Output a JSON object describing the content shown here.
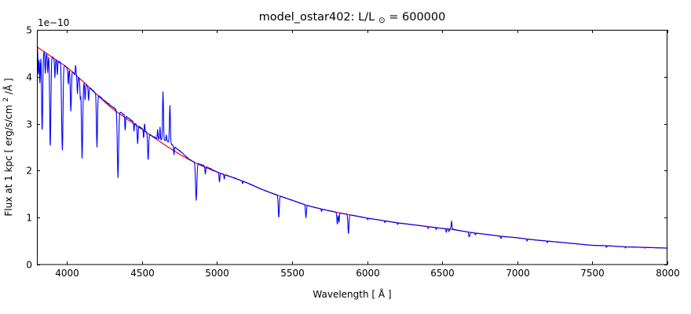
{
  "figure": {
    "title_prefix": "model_ostar402: L/L",
    "title_sub": "⊙",
    "title_suffix": " = 600000"
  },
  "chart_data": {
    "type": "line",
    "title": "model_ostar402: L/L⊙ = 600000",
    "xlabel": "Wavelength [ Å ]",
    "ylabel": "Flux at 1 kpc [ erg/s/cm² /Å ]",
    "ylabel_parts": {
      "prefix": "Flux at 1 kpc [ erg/s/cm",
      "sup": "2",
      "suffix": " /Å ]"
    },
    "y_offset_text": "1e−10",
    "x_range": [
      3800,
      8000
    ],
    "y_range": [
      0,
      5
    ],
    "x_ticks": [
      "4000",
      "4500",
      "5000",
      "5500",
      "6000",
      "6500",
      "7000",
      "7500",
      "8000"
    ],
    "y_ticks": [
      "0",
      "1",
      "2",
      "3",
      "4",
      "5"
    ],
    "grid": false,
    "legend": false,
    "series": [
      {
        "name": "model spectrum",
        "color": "#0000ff",
        "role": "spectrum"
      },
      {
        "name": "continuum fit",
        "color": "#ff0000",
        "role": "continuum"
      }
    ],
    "continuum_units": "1e-10 erg/s/cm2/A",
    "continuum_points": [
      [
        3800,
        4.64
      ],
      [
        3900,
        4.42
      ],
      [
        4000,
        4.2
      ],
      [
        4100,
        3.92
      ],
      [
        4200,
        3.62
      ],
      [
        4300,
        3.33
      ],
      [
        4400,
        3.1
      ],
      [
        4500,
        2.88
      ],
      [
        4600,
        2.66
      ],
      [
        4700,
        2.45
      ],
      [
        4800,
        2.26
      ],
      [
        4900,
        2.1
      ],
      [
        5000,
        1.97
      ],
      [
        5100,
        1.86
      ],
      [
        5200,
        1.74
      ],
      [
        5300,
        1.6
      ],
      [
        5400,
        1.48
      ],
      [
        5500,
        1.37
      ],
      [
        5600,
        1.26
      ],
      [
        5700,
        1.18
      ],
      [
        5800,
        1.11
      ],
      [
        5900,
        1.05
      ],
      [
        6000,
        0.99
      ],
      [
        6100,
        0.94
      ],
      [
        6200,
        0.89
      ],
      [
        6300,
        0.85
      ],
      [
        6400,
        0.81
      ],
      [
        6500,
        0.77
      ],
      [
        6600,
        0.73
      ],
      [
        6700,
        0.68
      ],
      [
        6800,
        0.64
      ],
      [
        6900,
        0.6
      ],
      [
        7000,
        0.57
      ],
      [
        7100,
        0.53
      ],
      [
        7200,
        0.5
      ],
      [
        7300,
        0.47
      ],
      [
        7400,
        0.44
      ],
      [
        7500,
        0.41
      ],
      [
        7600,
        0.4
      ],
      [
        7700,
        0.38
      ],
      [
        7800,
        0.37
      ],
      [
        7900,
        0.36
      ],
      [
        8000,
        0.35
      ]
    ],
    "features_format": [
      "wavelength_A",
      "relative_amplitude",
      "fwhm_A"
    ],
    "spectral_features": [
      [
        3810,
        -0.12,
        6
      ],
      [
        3820,
        -0.16,
        7
      ],
      [
        3835,
        -0.37,
        9
      ],
      [
        3856,
        -0.1,
        6
      ],
      [
        3872,
        -0.09,
        6
      ],
      [
        3889,
        -0.43,
        9
      ],
      [
        3920,
        -0.09,
        6
      ],
      [
        3936,
        -0.07,
        5
      ],
      [
        3964,
        -0.12,
        6
      ],
      [
        3970,
        -0.42,
        9
      ],
      [
        4009,
        -0.08,
        6
      ],
      [
        4026,
        -0.21,
        8
      ],
      [
        4058,
        0.05,
        5
      ],
      [
        4070,
        -0.09,
        6
      ],
      [
        4089,
        -0.1,
        6
      ],
      [
        4101,
        -0.42,
        10
      ],
      [
        4121,
        -0.09,
        6
      ],
      [
        4144,
        -0.08,
        6
      ],
      [
        4200,
        -0.31,
        8
      ],
      [
        4340,
        -0.44,
        10
      ],
      [
        4388,
        -0.1,
        6
      ],
      [
        4447,
        -0.06,
        5
      ],
      [
        4471,
        -0.13,
        7
      ],
      [
        4511,
        -0.06,
        5
      ],
      [
        4517,
        0.05,
        4
      ],
      [
        4541,
        -0.2,
        8
      ],
      [
        4604,
        0.07,
        5
      ],
      [
        4620,
        0.1,
        5
      ],
      [
        4640,
        0.4,
        7
      ],
      [
        4662,
        0.05,
        4
      ],
      [
        4686,
        0.32,
        7
      ],
      [
        4713,
        -0.07,
        5
      ],
      [
        4861,
        -0.37,
        10
      ],
      [
        4922,
        -0.08,
        6
      ],
      [
        5016,
        -0.1,
        6
      ],
      [
        5048,
        -0.05,
        5
      ],
      [
        5170,
        -0.03,
        5
      ],
      [
        5411,
        -0.31,
        8
      ],
      [
        5592,
        -0.21,
        7
      ],
      [
        5696,
        -0.04,
        5
      ],
      [
        5801,
        -0.22,
        7
      ],
      [
        5812,
        -0.18,
        6
      ],
      [
        5875,
        -0.38,
        8
      ],
      [
        6004,
        -0.03,
        5
      ],
      [
        6118,
        -0.04,
        5
      ],
      [
        6203,
        -0.04,
        5
      ],
      [
        6406,
        -0.05,
        5
      ],
      [
        6460,
        -0.05,
        5
      ],
      [
        6527,
        -0.1,
        6
      ],
      [
        6545,
        -0.08,
        5
      ],
      [
        6562,
        0.22,
        6
      ],
      [
        6678,
        -0.13,
        6
      ],
      [
        6683,
        -0.1,
        5
      ],
      [
        6721,
        -0.06,
        5
      ],
      [
        6891,
        -0.08,
        6
      ],
      [
        7065,
        -0.08,
        6
      ],
      [
        7200,
        -0.07,
        6
      ],
      [
        7594,
        -0.09,
        6
      ],
      [
        7720,
        -0.06,
        5
      ],
      [
        7850,
        -0.04,
        5
      ]
    ],
    "broad_bumps_format": [
      "center_A",
      "sigma_A",
      "relative_amplitude"
    ],
    "broad_bumps": [
      [
        4370,
        90,
        0.015
      ],
      [
        4680,
        45,
        0.045
      ],
      [
        4762,
        28,
        0.02
      ],
      [
        4920,
        40,
        0.012
      ],
      [
        6562,
        22,
        0.02
      ]
    ],
    "noise_amplitude": 0.004,
    "axis_color": "#000000",
    "background_color": "#ffffff"
  }
}
